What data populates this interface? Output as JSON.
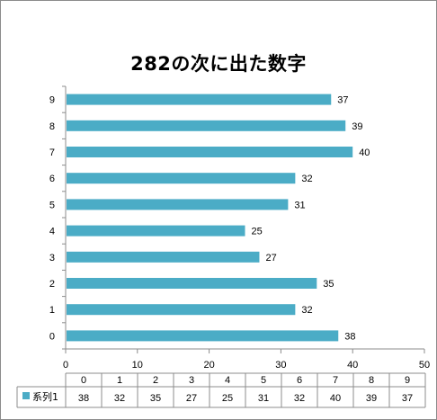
{
  "chart_data": {
    "type": "bar",
    "orientation": "horizontal",
    "title": "282の次に出た数字",
    "categories": [
      "0",
      "1",
      "2",
      "3",
      "4",
      "5",
      "6",
      "7",
      "8",
      "9"
    ],
    "series": [
      {
        "name": "系列1",
        "values": [
          38,
          32,
          35,
          27,
          25,
          31,
          32,
          40,
          39,
          37
        ],
        "color": "#4bacc6"
      }
    ],
    "xlim": [
      0,
      50
    ],
    "x_ticks": [
      "0",
      "10",
      "20",
      "30",
      "40",
      "50"
    ],
    "data_labels": true,
    "grid": false,
    "data_table": true,
    "legend_key_in_table": true
  }
}
